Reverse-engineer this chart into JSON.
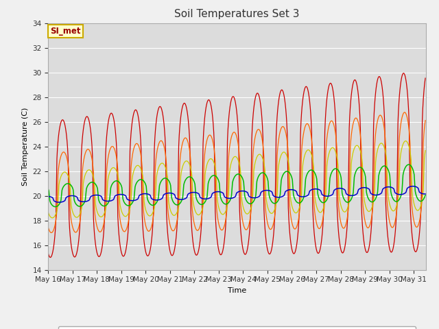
{
  "title": "Soil Temperatures Set 3",
  "xlabel": "Time",
  "ylabel": "Soil Temperature (C)",
  "ylim": [
    14,
    34
  ],
  "yticks": [
    14,
    16,
    18,
    20,
    22,
    24,
    26,
    28,
    30,
    32,
    34
  ],
  "bg_color": "#dcdcdc",
  "fig_color": "#f0f0f0",
  "series_colors": {
    "TC3_2Cm": "#cc0000",
    "TC3_4Cm": "#ff6600",
    "TC3_8Cm": "#cccc00",
    "TC3_16Cm": "#00bb00",
    "TC3_32Cm": "#0000cc"
  },
  "x_labels": [
    "May 16",
    "May 17",
    "May 18",
    "May 19",
    "May 20",
    "May 21",
    "May 22",
    "May 23",
    "May 24",
    "May 25",
    "May 26",
    "May 27",
    "May 28",
    "May 29",
    "May 30",
    "May 31"
  ],
  "annotation_text": "SI_met",
  "annotation_bg": "#ffffcc",
  "annotation_border": "#ccaa00"
}
